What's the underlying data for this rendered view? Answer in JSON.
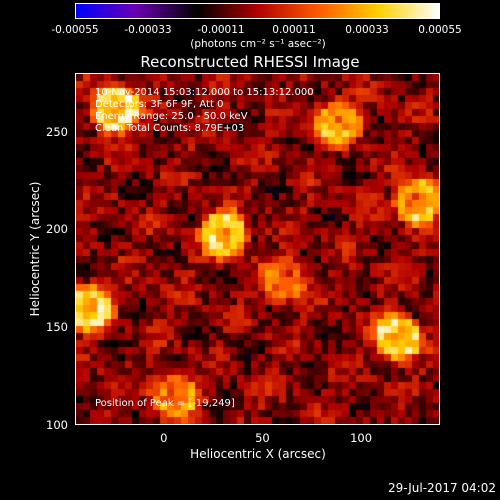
{
  "chart_data": {
    "type": "heatmap",
    "title": "Reconstructed RHESSI Image",
    "xlabel": "Heliocentric X (arcsec)",
    "ylabel": "Heliocentric Y (arcsec)",
    "xlim": [
      -45,
      140
    ],
    "ylim": [
      100,
      280
    ],
    "x_ticks": [
      "0",
      "50",
      "100"
    ],
    "x_tick_values": [
      0,
      50,
      100
    ],
    "y_ticks": [
      "100",
      "150",
      "200",
      "250"
    ],
    "y_tick_values": [
      100,
      150,
      200,
      250
    ],
    "colorbar": {
      "ticks": [
        "-0.00055",
        "-0.00033",
        "-0.00011",
        "0.00011",
        "0.00033",
        "0.00055"
      ],
      "range": [
        -0.00055,
        0.00055
      ],
      "units_label": "(photons cm⁻² s⁻¹ asec⁻²)",
      "colormap": [
        "#0000ff",
        "#6a00b0",
        "#000000",
        "#b00000",
        "#ff5a00",
        "#ffd000",
        "#ffffff"
      ]
    },
    "annotations": {
      "time_range": "10-Nov-2014 15:03:12.000 to 15:13:12.000",
      "detectors": "Detectors: 3F 6F 9F, Att 0",
      "energy": "Energy Range: 25.0 - 50.0 keV",
      "clean": "Clean     Total Counts: 8.79E+03",
      "peak": "Position of Peak = [-19,249]"
    },
    "bright_regions": [
      {
        "x": -25,
        "y": 262,
        "value": 0.0005
      },
      {
        "x": 30,
        "y": 198,
        "value": 0.00045
      },
      {
        "x": 88,
        "y": 255,
        "value": 0.00035
      },
      {
        "x": 118,
        "y": 145,
        "value": 0.00045
      },
      {
        "x": 128,
        "y": 215,
        "value": 0.0004
      },
      {
        "x": -38,
        "y": 160,
        "value": 0.00045
      },
      {
        "x": 5,
        "y": 115,
        "value": 0.0003
      },
      {
        "x": 60,
        "y": 175,
        "value": 0.00025
      }
    ]
  },
  "footer": {
    "datestamp": "29-Jul-2017 04:02"
  }
}
